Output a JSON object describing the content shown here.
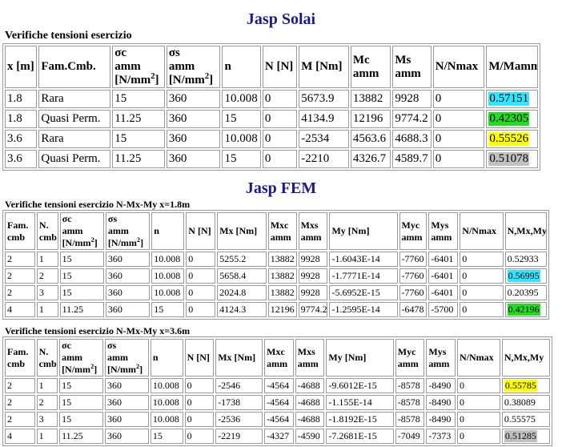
{
  "solai": {
    "title": "Jasp Solai",
    "caption": "Verifiche tensioni esercizio",
    "headers": [
      "x [m]",
      "Fam.Cmb.",
      "σc amm [N/mm²]",
      "σs amm [N/mm²]",
      "n",
      "N [N]",
      "M [Nm]",
      "Mc amm",
      "Ms amm",
      "N/Nmax",
      "M/Mamm"
    ],
    "rows": [
      {
        "cells": [
          "1.8",
          "Rara",
          "15",
          "360",
          "10.008",
          "0",
          "5673.9",
          "13882",
          "9928",
          "0",
          "0.57151"
        ],
        "hl": "#33e6ff"
      },
      {
        "cells": [
          "1.8",
          "Quasi Perm.",
          "11.25",
          "360",
          "15",
          "0",
          "4134.9",
          "12196",
          "9774.2",
          "0",
          "0.42305"
        ],
        "hl": "#22dd22"
      },
      {
        "cells": [
          "3.6",
          "Rara",
          "15",
          "360",
          "10.008",
          "0",
          "-2534",
          "4563.6",
          "4688.3",
          "0",
          "0.55526"
        ],
        "hl": "#ffff00"
      },
      {
        "cells": [
          "3.6",
          "Quasi Perm.",
          "11.25",
          "360",
          "15",
          "0",
          "-2210",
          "4326.7",
          "4589.7",
          "0",
          "0.51078"
        ],
        "hl": "#c0c0c0"
      }
    ]
  },
  "fem": {
    "title": "Jasp FEM",
    "headers": [
      "Fam. cmb",
      "N. cmb",
      "σc amm [N/mm²]",
      "σs amm [N/mm²]",
      "n",
      "N [N]",
      "Mx [Nm]",
      "Mxc amm",
      "Mxs amm",
      "My [Nm]",
      "Myc amm",
      "Mys amm",
      "N/Nmax",
      "N,Mx,My"
    ],
    "tables": [
      {
        "caption": "Verifiche tensioni esercizio N-Mx-My x=1.8m",
        "rows": [
          {
            "cells": [
              "2",
              "1",
              "15",
              "360",
              "10.008",
              "0",
              "5255.2",
              "13882",
              "9928",
              "-1.6043E-14",
              "-7760",
              "-6401",
              "0",
              "0.52933"
            ],
            "hl": ""
          },
          {
            "cells": [
              "2",
              "2",
              "15",
              "360",
              "10.008",
              "0",
              "5658.4",
              "13882",
              "9928",
              "-1.7771E-14",
              "-7760",
              "-6401",
              "0",
              "0.56995"
            ],
            "hl": "#33e6ff"
          },
          {
            "cells": [
              "2",
              "3",
              "15",
              "360",
              "10.008",
              "0",
              "2024.8",
              "13882",
              "9928",
              "-5.6952E-15",
              "-7760",
              "-6401",
              "0",
              "0.20395"
            ],
            "hl": ""
          },
          {
            "cells": [
              "4",
              "1",
              "11.25",
              "360",
              "15",
              "0",
              "4124.3",
              "12196",
              "9774.2",
              "-1.2595E-14",
              "-6478",
              "-5700",
              "0",
              "0.42196"
            ],
            "hl": "#22dd22"
          }
        ]
      },
      {
        "caption": "Verifiche tensioni esercizio N-Mx-My x=3.6m",
        "rows": [
          {
            "cells": [
              "2",
              "1",
              "15",
              "360",
              "10.008",
              "0",
              "-2546",
              "-4564",
              "-4688",
              "-9.6012E-15",
              "-8578",
              "-8490",
              "0",
              "0.55785"
            ],
            "hl": "#ffff00"
          },
          {
            "cells": [
              "2",
              "2",
              "15",
              "360",
              "10.008",
              "0",
              "-1738",
              "-4564",
              "-4688",
              "-1.155E-14",
              "-8578",
              "-8490",
              "0",
              "0.38089"
            ],
            "hl": ""
          },
          {
            "cells": [
              "2",
              "3",
              "15",
              "360",
              "10.008",
              "0",
              "-2536",
              "-4564",
              "-4688",
              "-1.8192E-15",
              "-8578",
              "-8490",
              "0",
              "0.55575"
            ],
            "hl": ""
          },
          {
            "cells": [
              "4",
              "1",
              "11.25",
              "360",
              "15",
              "0",
              "-2219",
              "-4327",
              "-4590",
              "-7.2681E-15",
              "-7049",
              "-7373",
              "0",
              "0.51285"
            ],
            "hl": "#c0c0c0"
          }
        ]
      }
    ]
  }
}
